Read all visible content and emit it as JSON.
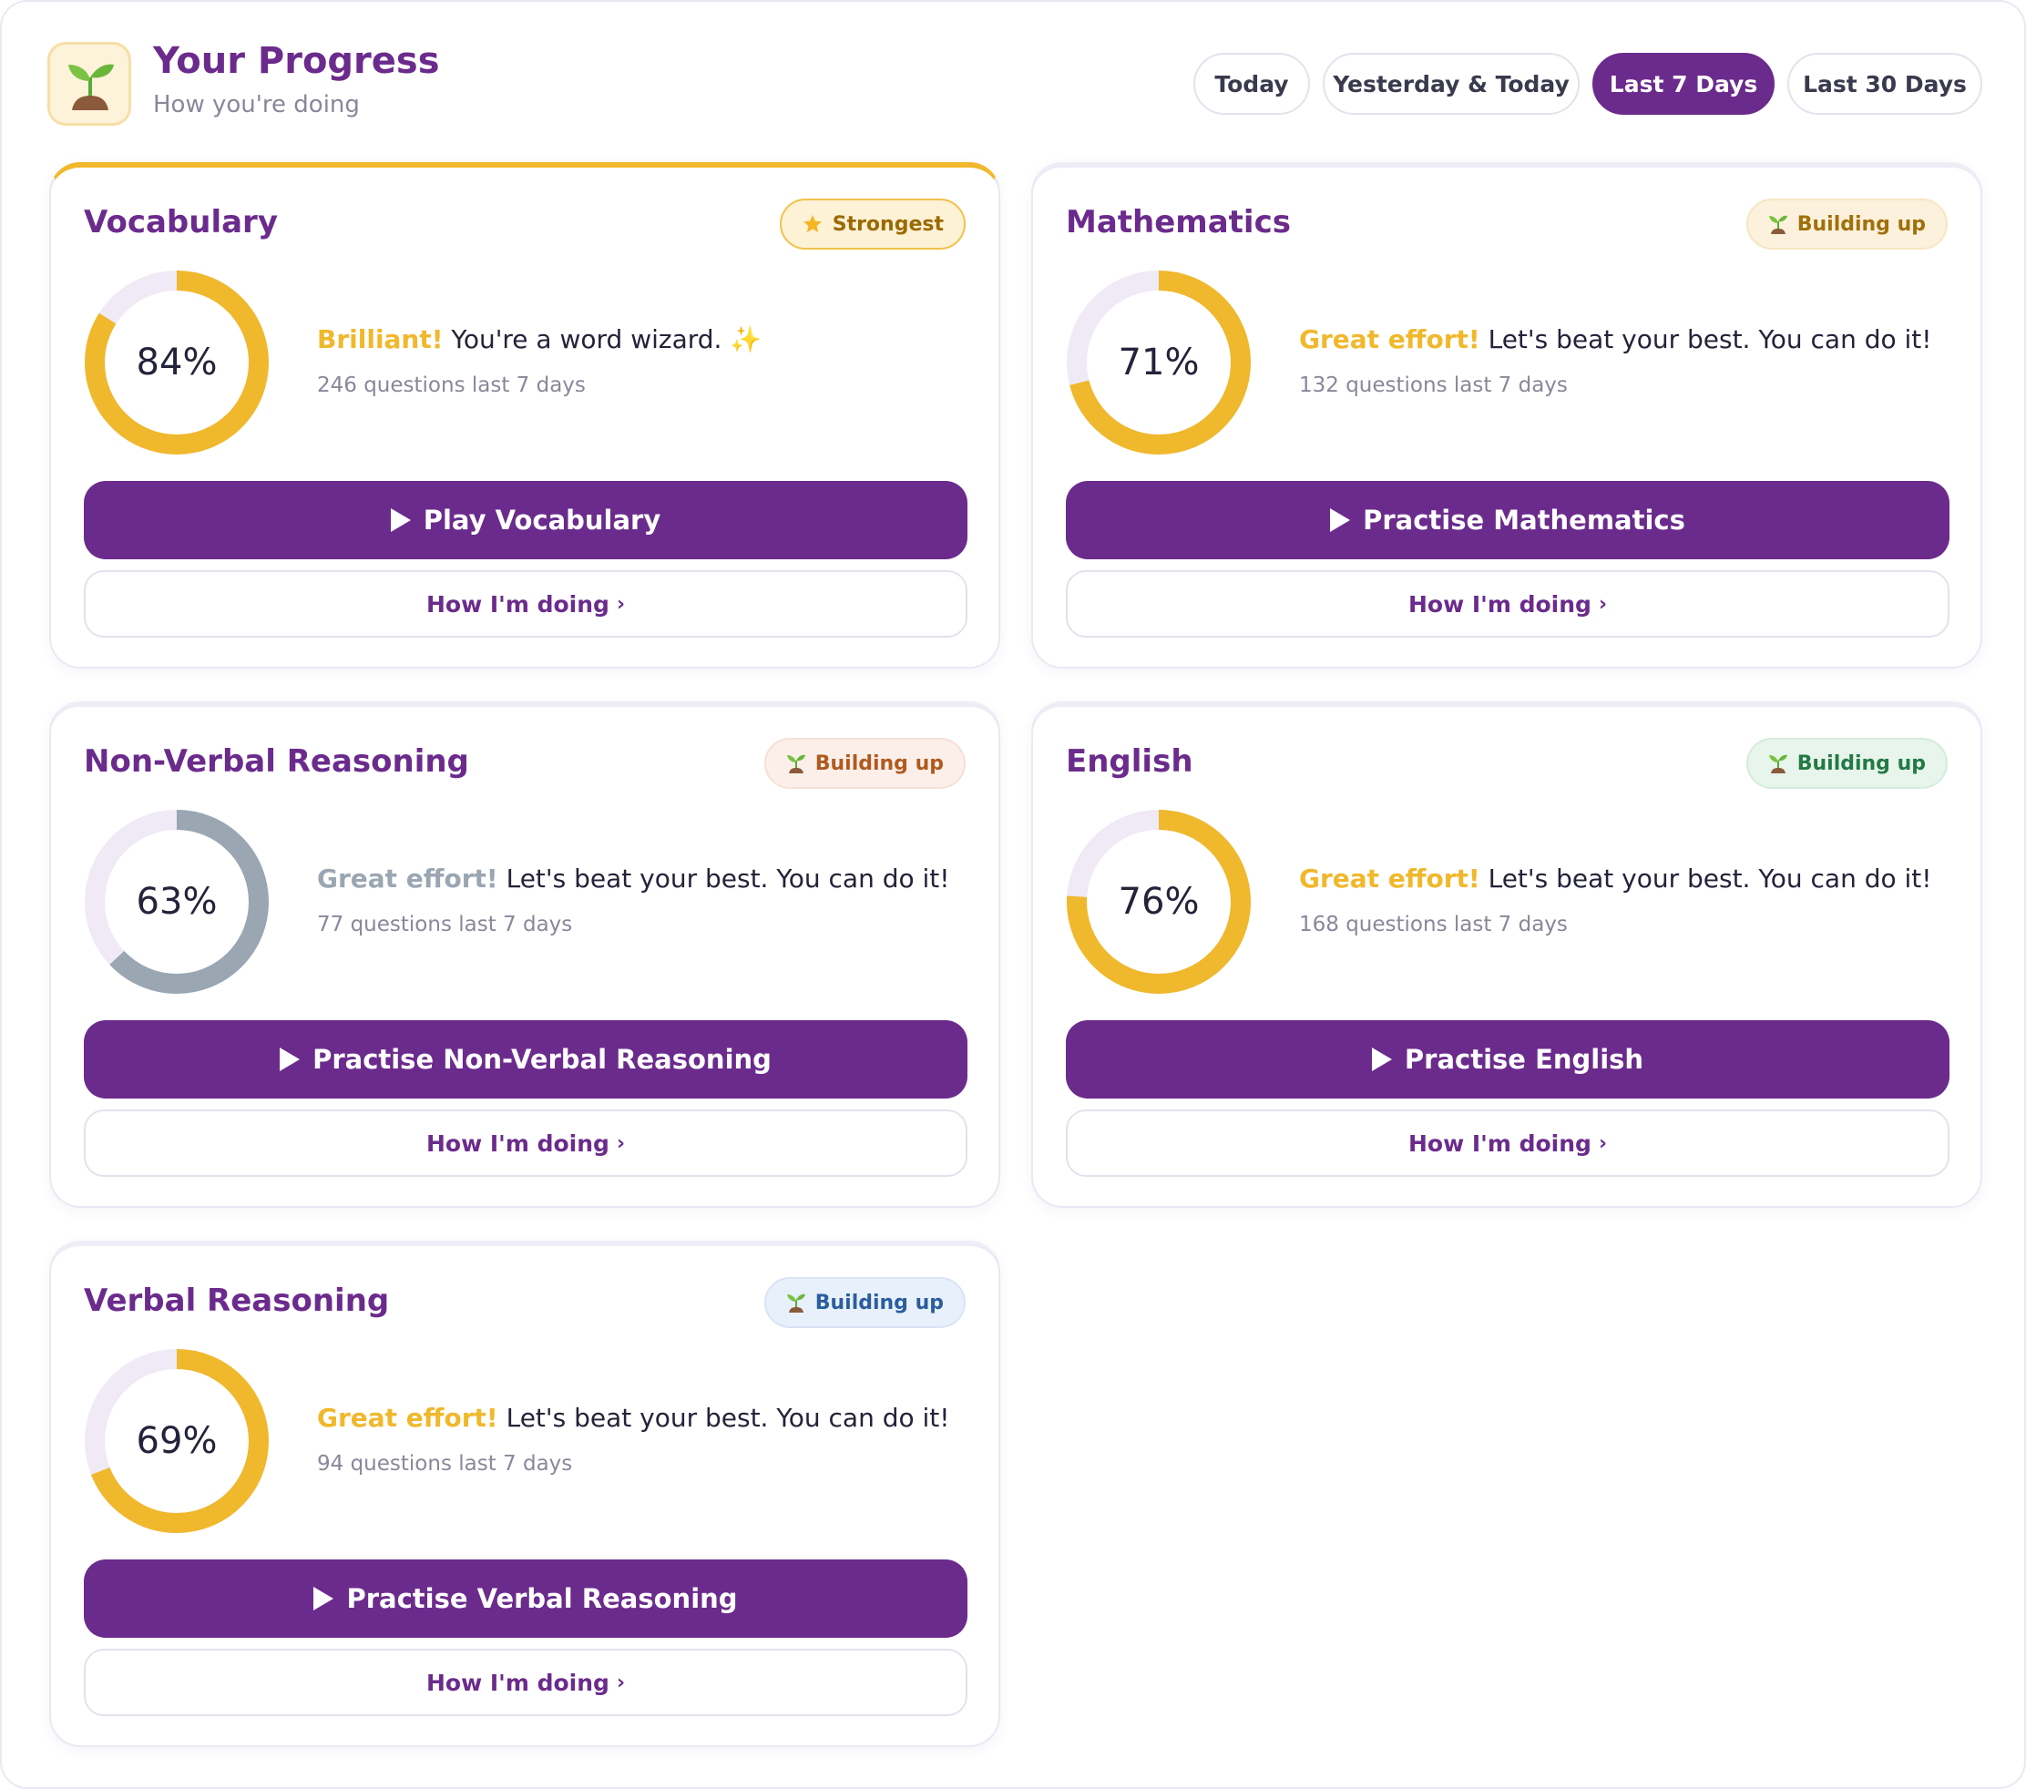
{
  "header": {
    "title": "Your Progress",
    "subtitle": "How you're doing",
    "logo_icon": "seedling-icon"
  },
  "tabs": [
    {
      "label": "Today",
      "active": false
    },
    {
      "label": "Yesterday & Today",
      "active": false
    },
    {
      "label": "Last 7 Days",
      "active": true
    },
    {
      "label": "Last 30 Days",
      "active": false
    }
  ],
  "colors": {
    "brand": "#6b2b8c",
    "accent": "#f0b82c",
    "muted_ring": "#9aa6b2",
    "ring_track": "#efeaf6"
  },
  "subjects": [
    {
      "title": "Vocabulary",
      "badge": {
        "label": "Strongest",
        "icon": "star-icon"
      },
      "percent_label": "84%",
      "progress": 0.84,
      "message_lead": "Brilliant!",
      "message_text": " You're a word wizard. ",
      "message_emoji": "✨",
      "questions": "246 questions last 7 days",
      "action_label": "Play Vocabulary",
      "how_label": "How I'm doing",
      "how_chevron": "›"
    },
    {
      "title": "Mathematics",
      "badge": {
        "label": "Building up",
        "icon": "seedling-icon"
      },
      "percent_label": "71%",
      "progress": 0.71,
      "message_lead": "Great effort!",
      "message_text": " Let's beat your best. You can do it!",
      "message_emoji": "",
      "questions": "132 questions last 7 days",
      "action_label": "Practise Mathematics",
      "how_label": "How I'm doing",
      "how_chevron": "›"
    },
    {
      "title": "Non-Verbal Reasoning",
      "badge": {
        "label": "Building up",
        "icon": "seedling-icon"
      },
      "percent_label": "63%",
      "progress": 0.63,
      "message_lead": "Great effort!",
      "message_text": " Let's beat your best. You can do it!",
      "message_emoji": "",
      "questions": "77 questions last 7 days",
      "action_label": "Practise Non-Verbal Reasoning",
      "how_label": "How I'm doing",
      "how_chevron": "›"
    },
    {
      "title": "English",
      "badge": {
        "label": "Building up",
        "icon": "seedling-icon"
      },
      "percent_label": "76%",
      "progress": 0.76,
      "message_lead": "Great effort!",
      "message_text": " Let's beat your best. You can do it!",
      "message_emoji": "",
      "questions": "168 questions last 7 days",
      "action_label": "Practise English",
      "how_label": "How I'm doing",
      "how_chevron": "›"
    },
    {
      "title": "Verbal Reasoning",
      "badge": {
        "label": "Building up",
        "icon": "seedling-icon"
      },
      "percent_label": "69%",
      "progress": 0.69,
      "message_lead": "Great effort!",
      "message_text": " Let's beat your best. You can do it!",
      "message_emoji": "",
      "questions": "94 questions last 7 days",
      "action_label": "Practise Verbal Reasoning",
      "how_label": "How I'm doing",
      "how_chevron": "›"
    }
  ]
}
